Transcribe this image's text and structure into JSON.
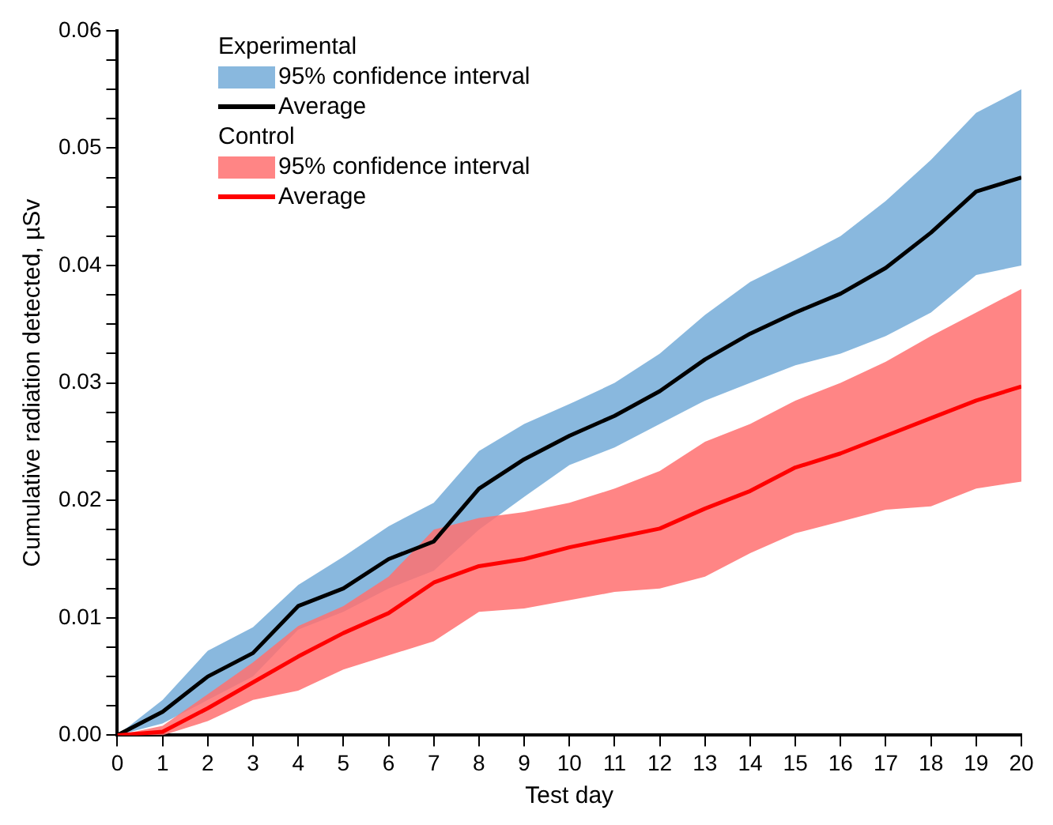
{
  "chart_data": {
    "type": "line",
    "xlabel": "Test day",
    "ylabel": "Cumulative radiation detected, µSv",
    "x": [
      0,
      1,
      2,
      3,
      4,
      5,
      6,
      7,
      8,
      9,
      10,
      11,
      12,
      13,
      14,
      15,
      16,
      17,
      18,
      19,
      20
    ],
    "series": [
      {
        "name": "Average",
        "color": "#000000",
        "values": [
          0,
          0.002,
          0.005,
          0.007,
          0.011,
          0.0125,
          0.015,
          0.0165,
          0.021,
          0.0235,
          0.0255,
          0.0272,
          0.0293,
          0.032,
          0.0342,
          0.036,
          0.0376,
          0.0398,
          0.0428,
          0.0463,
          0.0475
        ],
        "lower": [
          0,
          0.001,
          0.003,
          0.005,
          0.009,
          0.0105,
          0.0125,
          0.014,
          0.0175,
          0.0203,
          0.023,
          0.0245,
          0.0265,
          0.0285,
          0.03,
          0.0315,
          0.0325,
          0.034,
          0.036,
          0.0392,
          0.04
        ],
        "upper": [
          0,
          0.003,
          0.0072,
          0.0092,
          0.0128,
          0.0152,
          0.0178,
          0.0198,
          0.0242,
          0.0265,
          0.0282,
          0.03,
          0.0325,
          0.0358,
          0.0386,
          0.0405,
          0.0425,
          0.0455,
          0.049,
          0.053,
          0.055
        ]
      },
      {
        "name": "Average",
        "color": "#ff0000",
        "values": [
          0,
          0.0003,
          0.0023,
          0.0045,
          0.0067,
          0.0087,
          0.0104,
          0.013,
          0.0144,
          0.015,
          0.016,
          0.0168,
          0.0176,
          0.0193,
          0.0208,
          0.0228,
          0.024,
          0.0255,
          0.027,
          0.0285,
          0.0297
        ],
        "lower": [
          0,
          0,
          0.0012,
          0.003,
          0.0038,
          0.0056,
          0.0068,
          0.008,
          0.0105,
          0.0108,
          0.0115,
          0.0122,
          0.0125,
          0.0135,
          0.0155,
          0.0172,
          0.0182,
          0.0192,
          0.0195,
          0.021,
          0.0216
        ],
        "upper": [
          0,
          0.0008,
          0.0035,
          0.0062,
          0.0093,
          0.011,
          0.0135,
          0.0175,
          0.0185,
          0.019,
          0.0198,
          0.021,
          0.0225,
          0.025,
          0.0265,
          0.0285,
          0.03,
          0.0318,
          0.034,
          0.036,
          0.038
        ]
      }
    ],
    "colors": [
      "#74acd8",
      "#ff7070"
    ],
    "annotations": [
      "Experimental",
      "95% confidence interval",
      "Control",
      "95% confidence interval"
    ],
    "xlim": [
      0,
      20
    ],
    "xticks": [
      0,
      1,
      2,
      3,
      4,
      5,
      6,
      7,
      8,
      9,
      10,
      11,
      12,
      13,
      14,
      15,
      16,
      17,
      18,
      19,
      20
    ],
    "ylim": [
      0,
      0.06
    ],
    "yticks": [
      {
        "value": 0,
        "label": "0.00"
      },
      {
        "value": 0.0025,
        "label": null
      },
      {
        "value": 0.005,
        "label": null
      },
      {
        "value": 0.0075,
        "label": null
      },
      {
        "value": 0.01,
        "label": "0.01"
      },
      {
        "value": 0.0125,
        "label": null
      },
      {
        "value": 0.015,
        "label": null
      },
      {
        "value": 0.0175,
        "label": null
      },
      {
        "value": 0.02,
        "label": "0.02"
      },
      {
        "value": 0.0225,
        "label": null
      },
      {
        "value": 0.025,
        "label": null
      },
      {
        "value": 0.0275,
        "label": null
      },
      {
        "value": 0.03,
        "label": "0.03"
      },
      {
        "value": 0.0325,
        "label": null
      },
      {
        "value": 0.035,
        "label": null
      },
      {
        "value": 0.0375,
        "label": null
      },
      {
        "value": 0.04,
        "label": "0.04"
      },
      {
        "value": 0.0425,
        "label": null
      },
      {
        "value": 0.045,
        "label": null
      },
      {
        "value": 0.0475,
        "label": null
      },
      {
        "value": 0.05,
        "label": "0.05"
      },
      {
        "value": 0.0525,
        "label": null
      },
      {
        "value": 0.055,
        "label": null
      },
      {
        "value": 0.0575,
        "label": null
      },
      {
        "value": 0.06,
        "label": "0.06"
      }
    ],
    "grid": false,
    "legend": "top left",
    "marker": "none",
    "line_style": "solid"
  }
}
